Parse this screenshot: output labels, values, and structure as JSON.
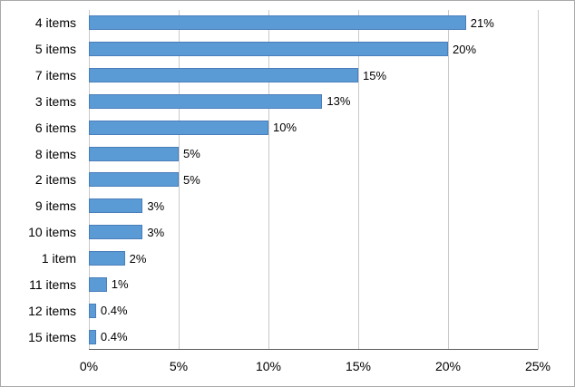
{
  "chart_data": {
    "type": "bar",
    "orientation": "horizontal",
    "title": "",
    "xlabel": "",
    "ylabel": "",
    "categories": [
      "4 items",
      "5 items",
      "7 items",
      "3 items",
      "6 items",
      "8 items",
      "2 items",
      "9 items",
      "10 items",
      "1 item",
      "11 items",
      "12 items",
      "15 items"
    ],
    "values": [
      21,
      20,
      15,
      13,
      10,
      5,
      5,
      3,
      3,
      2,
      1,
      0.4,
      0.4
    ],
    "value_labels": [
      "21%",
      "20%",
      "15%",
      "13%",
      "10%",
      "5%",
      "5%",
      "3%",
      "3%",
      "2%",
      "1%",
      "0.4%",
      "0.4%"
    ],
    "xlim": [
      0,
      25
    ],
    "x_ticks": [
      0,
      5,
      10,
      15,
      20,
      25
    ],
    "x_tick_labels": [
      "0%",
      "5%",
      "10%",
      "15%",
      "20%",
      "25%"
    ],
    "grid": true,
    "legend": "none",
    "colors": {
      "bar": "#5B9BD5",
      "bar_border": "#4A7EBB",
      "gridline": "#C9C9C9",
      "axis": "#595959",
      "frame_border": "#A9A9A9",
      "text": "#000000"
    }
  }
}
